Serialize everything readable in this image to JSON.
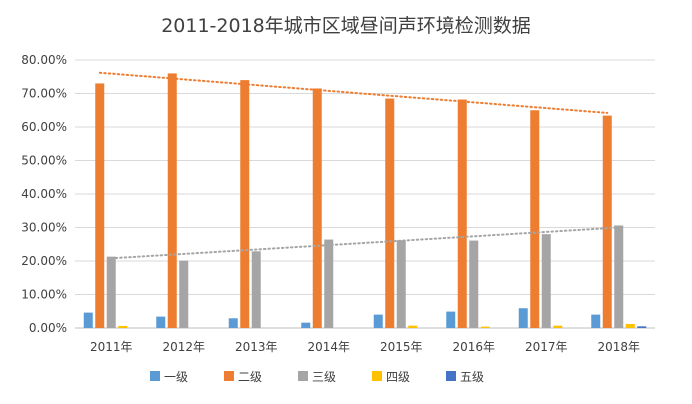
{
  "chart_data": {
    "type": "bar",
    "title": "2011-2018年城市区域昼间声环境检测数据",
    "categories": [
      "2011年",
      "2012年",
      "2013年",
      "2014年",
      "2015年",
      "2016年",
      "2017年",
      "2018年"
    ],
    "series": [
      {
        "name": "一级",
        "color": "#5B9BD5",
        "values": [
          4.6,
          3.4,
          2.9,
          1.6,
          4.0,
          4.9,
          5.9,
          4.0
        ]
      },
      {
        "name": "二级",
        "color": "#ED7D31",
        "values": [
          73.0,
          76.0,
          74.0,
          71.5,
          68.5,
          68.2,
          65.0,
          63.4
        ]
      },
      {
        "name": "三级",
        "color": "#A5A5A5",
        "values": [
          21.3,
          20.1,
          22.9,
          26.4,
          26.2,
          26.1,
          28.0,
          30.6
        ]
      },
      {
        "name": "四级",
        "color": "#FFC000",
        "values": [
          0.6,
          0.0,
          0.0,
          0.0,
          0.7,
          0.4,
          0.7,
          1.2
        ]
      },
      {
        "name": "五级",
        "color": "#4472C4",
        "values": [
          0.0,
          0.0,
          0.0,
          0.0,
          0.0,
          0.0,
          0.0,
          0.5
        ]
      }
    ],
    "trendlines": [
      {
        "series": "二级",
        "color": "#ED7D31",
        "start": 76.2,
        "end": 64.2
      },
      {
        "series": "三级",
        "color": "#A5A5A5",
        "start": 20.8,
        "end": 30.0
      }
    ],
    "y_ticks": [
      "0.00%",
      "10.00%",
      "20.00%",
      "30.00%",
      "40.00%",
      "50.00%",
      "60.00%",
      "70.00%",
      "80.00%"
    ],
    "ylim": [
      0,
      80
    ],
    "grid": true,
    "legend_position": "bottom"
  }
}
